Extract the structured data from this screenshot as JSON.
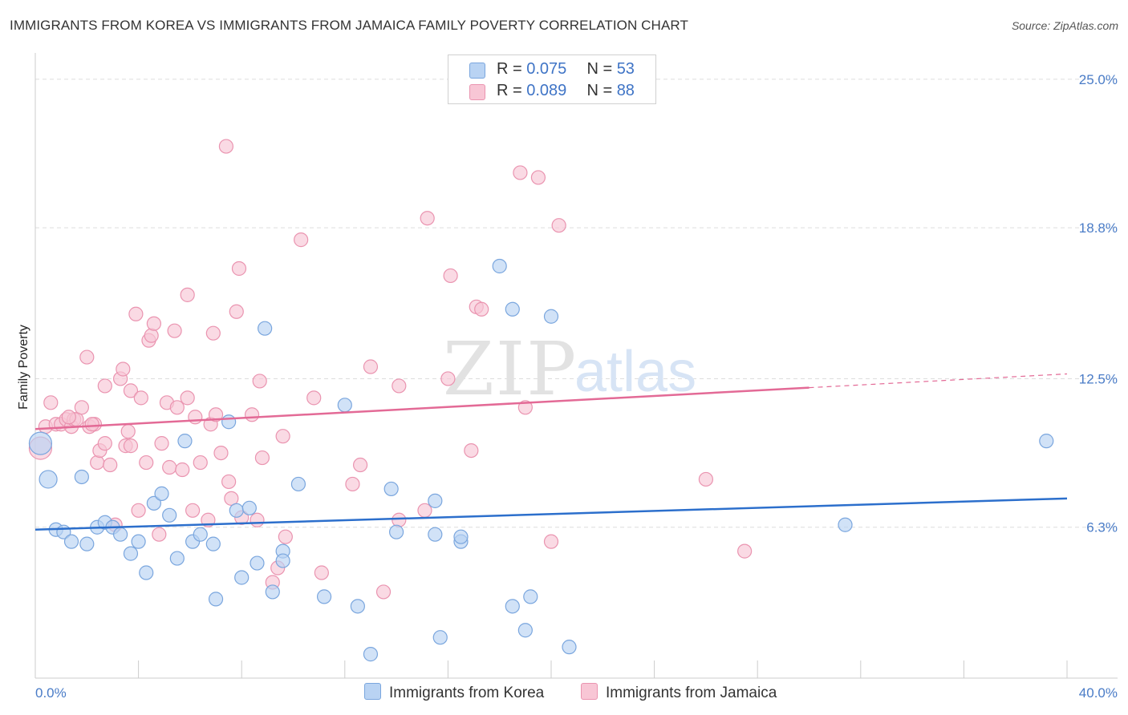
{
  "title": "IMMIGRANTS FROM KOREA VS IMMIGRANTS FROM JAMAICA FAMILY POVERTY CORRELATION CHART",
  "source": "Source: ZipAtlas.com",
  "watermark": {
    "zip": "ZIP",
    "atlas": "atlas"
  },
  "legend": {
    "korea": {
      "r_label": "R =",
      "r_value": "0.075",
      "n_label": "N =",
      "n_value": "53"
    },
    "jamaica": {
      "r_label": "R =",
      "r_value": "0.089",
      "n_label": "N =",
      "n_value": "88"
    }
  },
  "colors": {
    "korea_fill": "#b9d3f3",
    "korea_stroke": "#7aa6de",
    "korea_line": "#2c6fcc",
    "jamaica_fill": "#f8c6d5",
    "jamaica_stroke": "#ea94b0",
    "jamaica_line": "#e36a96",
    "tick_text": "#4a7cc7",
    "grid": "#dddddd"
  },
  "chart_data": {
    "type": "scatter",
    "title": "IMMIGRANTS FROM KOREA VS IMMIGRANTS FROM JAMAICA FAMILY POVERTY CORRELATION CHART",
    "xlabel": "",
    "ylabel": "Family Poverty",
    "xlim": [
      0,
      40
    ],
    "ylim": [
      0,
      25.9
    ],
    "x_tick_labels": [
      "0.0%",
      "40.0%"
    ],
    "y_ticks": [
      6.3,
      12.5,
      18.8,
      25.0
    ],
    "y_tick_labels": [
      "6.3%",
      "12.5%",
      "18.8%",
      "25.0%"
    ],
    "grid": true,
    "legend_position": "top-center",
    "series": [
      {
        "name": "Immigrants from Korea",
        "r": 0.075,
        "n": 53,
        "trend": {
          "x0": 0,
          "y0": 6.2,
          "x1": 40,
          "y1": 7.5,
          "dashed_from": null
        },
        "points": [
          {
            "x": 0.2,
            "y": 9.8,
            "s": 2
          },
          {
            "x": 0.5,
            "y": 8.3,
            "s": 1.5
          },
          {
            "x": 0.8,
            "y": 6.2,
            "s": 1
          },
          {
            "x": 1.1,
            "y": 6.1,
            "s": 1
          },
          {
            "x": 1.4,
            "y": 5.7,
            "s": 1
          },
          {
            "x": 1.8,
            "y": 8.4,
            "s": 1
          },
          {
            "x": 2.0,
            "y": 5.6,
            "s": 1
          },
          {
            "x": 2.4,
            "y": 6.3,
            "s": 1
          },
          {
            "x": 2.7,
            "y": 6.5,
            "s": 1
          },
          {
            "x": 3.0,
            "y": 6.3,
            "s": 1
          },
          {
            "x": 3.3,
            "y": 6.0,
            "s": 1
          },
          {
            "x": 3.7,
            "y": 5.2,
            "s": 1
          },
          {
            "x": 4.0,
            "y": 5.7,
            "s": 1
          },
          {
            "x": 4.3,
            "y": 4.4,
            "s": 1
          },
          {
            "x": 4.6,
            "y": 7.3,
            "s": 1
          },
          {
            "x": 4.9,
            "y": 7.7,
            "s": 1
          },
          {
            "x": 5.2,
            "y": 6.8,
            "s": 1
          },
          {
            "x": 5.5,
            "y": 5.0,
            "s": 1
          },
          {
            "x": 5.8,
            "y": 9.9,
            "s": 1
          },
          {
            "x": 6.1,
            "y": 5.7,
            "s": 1
          },
          {
            "x": 6.4,
            "y": 6.0,
            "s": 1
          },
          {
            "x": 6.9,
            "y": 5.6,
            "s": 1
          },
          {
            "x": 7.0,
            "y": 3.3,
            "s": 1
          },
          {
            "x": 7.5,
            "y": 10.7,
            "s": 1
          },
          {
            "x": 7.8,
            "y": 7.0,
            "s": 1
          },
          {
            "x": 8.0,
            "y": 4.2,
            "s": 1
          },
          {
            "x": 8.3,
            "y": 7.1,
            "s": 1
          },
          {
            "x": 8.6,
            "y": 4.8,
            "s": 1
          },
          {
            "x": 8.9,
            "y": 14.6,
            "s": 1
          },
          {
            "x": 9.2,
            "y": 3.6,
            "s": 1
          },
          {
            "x": 9.6,
            "y": 5.3,
            "s": 1
          },
          {
            "x": 9.6,
            "y": 4.9,
            "s": 1
          },
          {
            "x": 10.2,
            "y": 8.1,
            "s": 1
          },
          {
            "x": 11.2,
            "y": 3.4,
            "s": 1
          },
          {
            "x": 12.0,
            "y": 11.4,
            "s": 1
          },
          {
            "x": 12.5,
            "y": 3.0,
            "s": 1
          },
          {
            "x": 13.0,
            "y": 1.0,
            "s": 1
          },
          {
            "x": 13.8,
            "y": 7.9,
            "s": 1
          },
          {
            "x": 14.0,
            "y": 6.1,
            "s": 1
          },
          {
            "x": 15.5,
            "y": 7.4,
            "s": 1
          },
          {
            "x": 15.5,
            "y": 6.0,
            "s": 1
          },
          {
            "x": 15.7,
            "y": 1.7,
            "s": 1
          },
          {
            "x": 16.5,
            "y": 5.7,
            "s": 1
          },
          {
            "x": 16.5,
            "y": 5.9,
            "s": 1
          },
          {
            "x": 18.0,
            "y": 17.2,
            "s": 1
          },
          {
            "x": 18.5,
            "y": 15.4,
            "s": 1
          },
          {
            "x": 18.5,
            "y": 3.0,
            "s": 1
          },
          {
            "x": 19.0,
            "y": 2.0,
            "s": 1
          },
          {
            "x": 19.2,
            "y": 3.4,
            "s": 1
          },
          {
            "x": 20.0,
            "y": 15.1,
            "s": 1
          },
          {
            "x": 20.7,
            "y": 1.3,
            "s": 1
          },
          {
            "x": 31.4,
            "y": 6.4,
            "s": 1
          },
          {
            "x": 39.2,
            "y": 9.9,
            "s": 1
          }
        ]
      },
      {
        "name": "Immigrants from Jamaica",
        "r": 0.089,
        "n": 88,
        "trend": {
          "x0": 0,
          "y0": 10.4,
          "x1": 40,
          "y1": 12.7,
          "dashed_from": 30
        },
        "points": [
          {
            "x": 0.2,
            "y": 9.6,
            "s": 2
          },
          {
            "x": 0.4,
            "y": 10.5,
            "s": 1
          },
          {
            "x": 0.6,
            "y": 11.5,
            "s": 1
          },
          {
            "x": 0.8,
            "y": 10.6,
            "s": 1
          },
          {
            "x": 1.0,
            "y": 10.6,
            "s": 1
          },
          {
            "x": 1.2,
            "y": 10.8,
            "s": 1
          },
          {
            "x": 1.4,
            "y": 10.5,
            "s": 1
          },
          {
            "x": 1.5,
            "y": 10.8,
            "s": 1
          },
          {
            "x": 1.6,
            "y": 10.8,
            "s": 1
          },
          {
            "x": 1.8,
            "y": 11.3,
            "s": 1
          },
          {
            "x": 2.0,
            "y": 13.4,
            "s": 1
          },
          {
            "x": 2.1,
            "y": 10.5,
            "s": 1
          },
          {
            "x": 2.3,
            "y": 10.6,
            "s": 1
          },
          {
            "x": 2.4,
            "y": 9.0,
            "s": 1
          },
          {
            "x": 2.5,
            "y": 9.5,
            "s": 1
          },
          {
            "x": 2.7,
            "y": 9.8,
            "s": 1
          },
          {
            "x": 2.7,
            "y": 12.2,
            "s": 1
          },
          {
            "x": 2.9,
            "y": 8.9,
            "s": 1
          },
          {
            "x": 3.1,
            "y": 6.4,
            "s": 1
          },
          {
            "x": 3.3,
            "y": 12.5,
            "s": 1
          },
          {
            "x": 3.4,
            "y": 12.9,
            "s": 1
          },
          {
            "x": 3.5,
            "y": 9.7,
            "s": 1
          },
          {
            "x": 3.6,
            "y": 10.3,
            "s": 1
          },
          {
            "x": 3.7,
            "y": 12.0,
            "s": 1
          },
          {
            "x": 3.9,
            "y": 15.2,
            "s": 1
          },
          {
            "x": 4.0,
            "y": 7.0,
            "s": 1
          },
          {
            "x": 4.1,
            "y": 11.7,
            "s": 1
          },
          {
            "x": 4.3,
            "y": 9.0,
            "s": 1
          },
          {
            "x": 4.4,
            "y": 14.1,
            "s": 1
          },
          {
            "x": 4.5,
            "y": 14.3,
            "s": 1
          },
          {
            "x": 4.6,
            "y": 14.8,
            "s": 1
          },
          {
            "x": 4.8,
            "y": 6.0,
            "s": 1
          },
          {
            "x": 4.9,
            "y": 9.8,
            "s": 1
          },
          {
            "x": 5.1,
            "y": 11.5,
            "s": 1
          },
          {
            "x": 5.2,
            "y": 8.8,
            "s": 1
          },
          {
            "x": 5.4,
            "y": 14.5,
            "s": 1
          },
          {
            "x": 5.5,
            "y": 11.3,
            "s": 1
          },
          {
            "x": 5.7,
            "y": 8.7,
            "s": 1
          },
          {
            "x": 5.9,
            "y": 16.0,
            "s": 1
          },
          {
            "x": 5.9,
            "y": 11.7,
            "s": 1
          },
          {
            "x": 6.1,
            "y": 7.0,
            "s": 1
          },
          {
            "x": 6.2,
            "y": 10.9,
            "s": 1
          },
          {
            "x": 6.4,
            "y": 9.0,
            "s": 1
          },
          {
            "x": 6.7,
            "y": 6.6,
            "s": 1
          },
          {
            "x": 6.8,
            "y": 10.6,
            "s": 1
          },
          {
            "x": 6.9,
            "y": 14.4,
            "s": 1
          },
          {
            "x": 7.0,
            "y": 11.0,
            "s": 1
          },
          {
            "x": 7.2,
            "y": 9.4,
            "s": 1
          },
          {
            "x": 7.4,
            "y": 22.2,
            "s": 1
          },
          {
            "x": 7.5,
            "y": 8.2,
            "s": 1
          },
          {
            "x": 7.6,
            "y": 7.5,
            "s": 1
          },
          {
            "x": 7.8,
            "y": 15.3,
            "s": 1
          },
          {
            "x": 7.9,
            "y": 17.1,
            "s": 1
          },
          {
            "x": 8.0,
            "y": 6.7,
            "s": 1
          },
          {
            "x": 8.4,
            "y": 11.0,
            "s": 1
          },
          {
            "x": 8.6,
            "y": 6.6,
            "s": 1
          },
          {
            "x": 8.7,
            "y": 12.4,
            "s": 1
          },
          {
            "x": 8.8,
            "y": 9.2,
            "s": 1
          },
          {
            "x": 9.2,
            "y": 4.0,
            "s": 1
          },
          {
            "x": 9.4,
            "y": 4.6,
            "s": 1
          },
          {
            "x": 9.6,
            "y": 10.1,
            "s": 1
          },
          {
            "x": 9.7,
            "y": 5.9,
            "s": 1
          },
          {
            "x": 10.3,
            "y": 18.3,
            "s": 1
          },
          {
            "x": 10.8,
            "y": 11.7,
            "s": 1
          },
          {
            "x": 11.1,
            "y": 4.4,
            "s": 1
          },
          {
            "x": 12.3,
            "y": 8.1,
            "s": 1
          },
          {
            "x": 12.6,
            "y": 8.9,
            "s": 1
          },
          {
            "x": 13.0,
            "y": 13.0,
            "s": 1
          },
          {
            "x": 13.5,
            "y": 3.6,
            "s": 1
          },
          {
            "x": 14.1,
            "y": 12.2,
            "s": 1
          },
          {
            "x": 14.1,
            "y": 6.6,
            "s": 1
          },
          {
            "x": 15.1,
            "y": 7.0,
            "s": 1
          },
          {
            "x": 15.2,
            "y": 19.2,
            "s": 1
          },
          {
            "x": 16.0,
            "y": 12.5,
            "s": 1
          },
          {
            "x": 16.1,
            "y": 16.8,
            "s": 1
          },
          {
            "x": 16.9,
            "y": 9.5,
            "s": 1
          },
          {
            "x": 17.1,
            "y": 15.5,
            "s": 1
          },
          {
            "x": 17.3,
            "y": 15.4,
            "s": 1
          },
          {
            "x": 18.8,
            "y": 21.1,
            "s": 1
          },
          {
            "x": 19.0,
            "y": 11.3,
            "s": 1
          },
          {
            "x": 19.5,
            "y": 20.9,
            "s": 1
          },
          {
            "x": 20.0,
            "y": 5.7,
            "s": 1
          },
          {
            "x": 20.3,
            "y": 18.9,
            "s": 1
          },
          {
            "x": 26.0,
            "y": 8.3,
            "s": 1
          },
          {
            "x": 27.5,
            "y": 5.3,
            "s": 1
          },
          {
            "x": 3.7,
            "y": 9.7,
            "s": 1
          },
          {
            "x": 2.2,
            "y": 10.6,
            "s": 1
          },
          {
            "x": 1.3,
            "y": 10.9,
            "s": 1
          }
        ]
      }
    ]
  }
}
